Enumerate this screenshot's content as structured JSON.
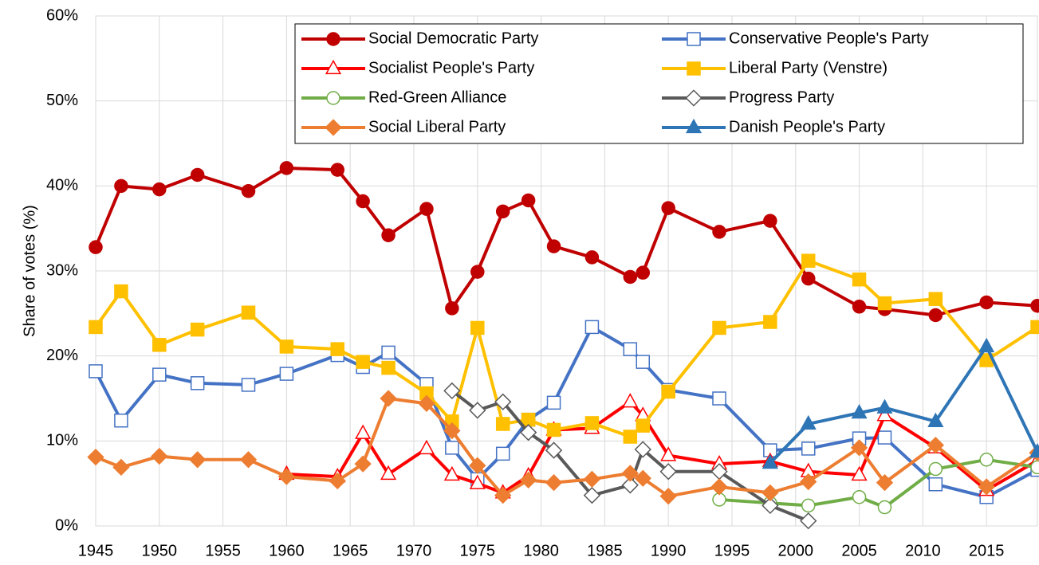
{
  "chart_data": {
    "type": "line",
    "y_label": "Share of votes (%)",
    "x": [
      1945,
      1947,
      1950,
      1953,
      1957,
      1960,
      1964,
      1966,
      1968,
      1971,
      1973,
      1975,
      1977,
      1979,
      1981,
      1984,
      1987,
      1988,
      1990,
      1994,
      1998,
      2001,
      2005,
      2007,
      2011,
      2015,
      2019
    ],
    "xlim": [
      1945,
      2019
    ],
    "xticks": [
      1945,
      1950,
      1955,
      1960,
      1965,
      1970,
      1975,
      1980,
      1985,
      1990,
      1995,
      2000,
      2005,
      2010,
      2015
    ],
    "ylim": [
      0,
      60
    ],
    "yticks": [
      {
        "value": 0,
        "label": "0%"
      },
      {
        "value": 10,
        "label": "10%"
      },
      {
        "value": 20,
        "label": "20%"
      },
      {
        "value": 30,
        "label": "30%"
      },
      {
        "value": 40,
        "label": "40%"
      },
      {
        "value": 50,
        "label": "50%"
      },
      {
        "value": 60,
        "label": "60%"
      }
    ],
    "grid": true,
    "legend": "top-right",
    "series": [
      {
        "name": "Social Democratic Party",
        "color": "#c00000",
        "marker": "circle",
        "filled": true,
        "values": [
          32.8,
          40.0,
          39.6,
          41.3,
          39.4,
          42.1,
          41.9,
          38.2,
          34.2,
          37.3,
          25.6,
          29.9,
          37.0,
          38.3,
          32.9,
          31.6,
          29.3,
          29.8,
          37.4,
          34.6,
          35.9,
          29.1,
          25.8,
          25.5,
          24.8,
          26.3,
          25.9
        ]
      },
      {
        "name": "Conservative People's Party",
        "color": "#4472c4",
        "marker": "square",
        "filled": false,
        "values": [
          18.2,
          12.4,
          17.8,
          16.8,
          16.6,
          17.9,
          20.1,
          18.7,
          20.4,
          16.7,
          9.2,
          5.5,
          8.5,
          12.5,
          14.5,
          23.4,
          20.8,
          19.3,
          16.0,
          15.0,
          8.9,
          9.1,
          10.3,
          10.4,
          4.9,
          3.4,
          6.6
        ]
      },
      {
        "name": "Socialist People's Party",
        "color": "#ff0000",
        "marker": "triangle",
        "filled": false,
        "values": [
          null,
          null,
          null,
          null,
          null,
          6.1,
          5.8,
          10.9,
          6.1,
          9.1,
          6.0,
          5.0,
          3.9,
          5.9,
          11.3,
          11.5,
          14.6,
          13.0,
          8.3,
          7.3,
          7.6,
          6.4,
          6.0,
          13.0,
          9.2,
          4.2,
          7.7
        ]
      },
      {
        "name": "Liberal Party (Venstre)",
        "color": "#ffc000",
        "marker": "square",
        "filled": true,
        "values": [
          23.4,
          27.6,
          21.3,
          23.1,
          25.1,
          21.1,
          20.8,
          19.3,
          18.6,
          15.6,
          12.3,
          23.3,
          12.0,
          12.5,
          11.3,
          12.1,
          10.5,
          11.8,
          15.8,
          23.3,
          24.0,
          31.2,
          29.0,
          26.2,
          26.7,
          19.5,
          23.4
        ]
      },
      {
        "name": "Red-Green Alliance",
        "color": "#70ad47",
        "marker": "circle",
        "filled": false,
        "values": [
          null,
          null,
          null,
          null,
          null,
          null,
          null,
          null,
          null,
          null,
          null,
          null,
          null,
          null,
          null,
          null,
          null,
          null,
          null,
          3.1,
          2.7,
          2.4,
          3.4,
          2.2,
          6.7,
          7.8,
          6.9
        ]
      },
      {
        "name": "Progress Party",
        "color": "#595959",
        "marker": "diamond",
        "filled": false,
        "values": [
          null,
          null,
          null,
          null,
          null,
          null,
          null,
          null,
          null,
          null,
          15.9,
          13.6,
          14.6,
          11.0,
          8.9,
          3.6,
          4.8,
          9.0,
          6.4,
          6.4,
          2.4,
          0.6,
          null,
          null,
          null,
          null,
          null
        ]
      },
      {
        "name": "Social Liberal Party",
        "color": "#ed7d31",
        "marker": "diamond",
        "filled": true,
        "values": [
          8.1,
          6.9,
          8.2,
          7.8,
          7.8,
          5.8,
          5.3,
          7.3,
          15.0,
          14.4,
          11.2,
          7.1,
          3.6,
          5.4,
          5.1,
          5.5,
          6.2,
          5.6,
          3.5,
          4.6,
          3.9,
          5.2,
          9.2,
          5.1,
          9.5,
          4.6,
          8.6
        ]
      },
      {
        "name": "Danish People's Party",
        "color": "#2e75b6",
        "marker": "triangle",
        "filled": true,
        "values": [
          null,
          null,
          null,
          null,
          null,
          null,
          null,
          null,
          null,
          null,
          null,
          null,
          null,
          null,
          null,
          null,
          null,
          null,
          null,
          null,
          7.4,
          12.0,
          13.3,
          13.9,
          12.3,
          21.1,
          8.7
        ]
      }
    ]
  }
}
